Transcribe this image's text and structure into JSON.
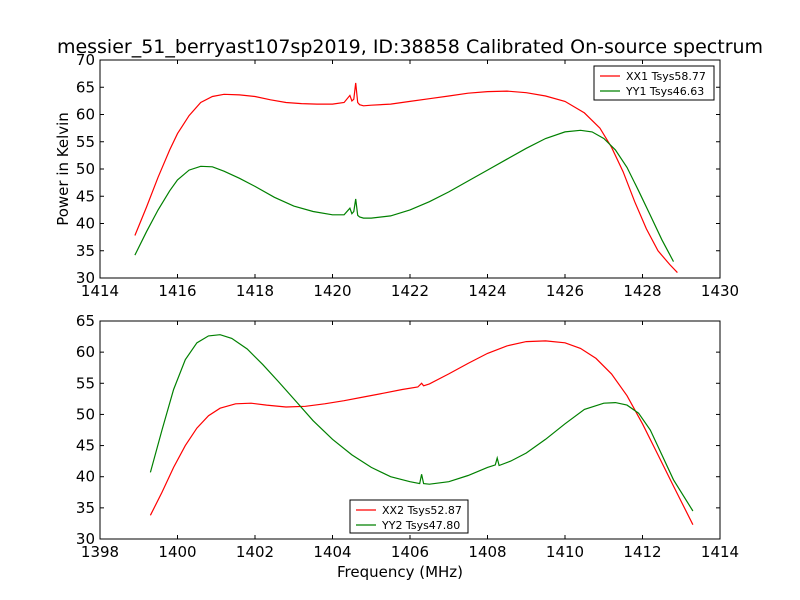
{
  "title": "messier_51_berryast107sp2019, ID:38858 Calibrated On-source spectrum",
  "colors": {
    "xx": "#ff0000",
    "yy": "#008000"
  },
  "chart_data": [
    {
      "type": "line",
      "ylabel": "Power in Kelvin",
      "xlabel": "",
      "xlim": [
        1414,
        1430
      ],
      "ylim": [
        30,
        70
      ],
      "xticks": [
        1414,
        1416,
        1418,
        1420,
        1422,
        1424,
        1426,
        1428,
        1430
      ],
      "yticks": [
        30,
        35,
        40,
        45,
        50,
        55,
        60,
        65,
        70
      ],
      "legend_position": "top-right",
      "series": [
        {
          "name": "XX1 Tsys58.77",
          "color": "#ff0000",
          "x": [
            1414.9,
            1415.2,
            1415.5,
            1415.8,
            1416.0,
            1416.3,
            1416.6,
            1416.9,
            1417.2,
            1417.6,
            1418.0,
            1418.4,
            1418.8,
            1419.2,
            1419.6,
            1420.0,
            1420.3,
            1420.45,
            1420.5,
            1420.55,
            1420.6,
            1420.65,
            1420.7,
            1420.8,
            1421.0,
            1421.5,
            1422.0,
            1422.5,
            1423.0,
            1423.5,
            1424.0,
            1424.5,
            1425.0,
            1425.5,
            1426.0,
            1426.5,
            1426.9,
            1427.2,
            1427.5,
            1427.8,
            1428.1,
            1428.4,
            1428.7,
            1428.9
          ],
          "y": [
            37.8,
            43.0,
            48.5,
            53.5,
            56.5,
            59.8,
            62.2,
            63.3,
            63.7,
            63.6,
            63.3,
            62.7,
            62.2,
            62.0,
            61.9,
            61.9,
            62.2,
            63.5,
            62.5,
            62.8,
            65.8,
            62.2,
            61.8,
            61.6,
            61.7,
            61.9,
            62.4,
            62.9,
            63.4,
            63.9,
            64.2,
            64.3,
            64.0,
            63.4,
            62.4,
            60.3,
            57.5,
            54.0,
            49.5,
            44.0,
            39.0,
            35.0,
            32.5,
            31.0
          ]
        },
        {
          "name": "YY1 Tsys46.63",
          "color": "#008000",
          "x": [
            1414.9,
            1415.2,
            1415.5,
            1415.8,
            1416.0,
            1416.3,
            1416.6,
            1416.9,
            1417.2,
            1417.6,
            1418.0,
            1418.5,
            1419.0,
            1419.5,
            1420.0,
            1420.3,
            1420.45,
            1420.5,
            1420.55,
            1420.6,
            1420.65,
            1420.7,
            1420.8,
            1421.0,
            1421.5,
            1422.0,
            1422.5,
            1423.0,
            1423.5,
            1424.0,
            1424.5,
            1425.0,
            1425.5,
            1426.0,
            1426.4,
            1426.7,
            1427.0,
            1427.3,
            1427.6,
            1427.9,
            1428.2,
            1428.5,
            1428.8
          ],
          "y": [
            34.2,
            38.5,
            42.5,
            46.0,
            48.0,
            49.8,
            50.5,
            50.4,
            49.6,
            48.3,
            46.8,
            44.8,
            43.2,
            42.2,
            41.6,
            41.6,
            42.8,
            41.8,
            42.2,
            44.5,
            41.5,
            41.2,
            41.0,
            41.0,
            41.4,
            42.5,
            44.0,
            45.8,
            47.8,
            49.8,
            51.8,
            53.8,
            55.6,
            56.8,
            57.1,
            56.8,
            55.6,
            53.5,
            50.3,
            46.0,
            41.5,
            37.0,
            33.0
          ]
        }
      ]
    },
    {
      "type": "line",
      "ylabel": "",
      "xlabel": "Frequency (MHz)",
      "xlim": [
        1398,
        1414
      ],
      "ylim": [
        30,
        65
      ],
      "xticks": [
        1398,
        1400,
        1402,
        1404,
        1406,
        1408,
        1410,
        1412,
        1414
      ],
      "yticks": [
        30,
        35,
        40,
        45,
        50,
        55,
        60,
        65
      ],
      "legend_position": "bottom-center",
      "series": [
        {
          "name": "XX2 Tsys52.87",
          "color": "#ff0000",
          "x": [
            1399.3,
            1399.6,
            1399.9,
            1400.2,
            1400.5,
            1400.8,
            1401.1,
            1401.5,
            1401.9,
            1402.3,
            1402.8,
            1403.3,
            1403.8,
            1404.3,
            1404.8,
            1405.3,
            1405.8,
            1406.2,
            1406.3,
            1406.35,
            1406.5,
            1407.0,
            1407.5,
            1408.0,
            1408.5,
            1409.0,
            1409.5,
            1410.0,
            1410.4,
            1410.8,
            1411.2,
            1411.6,
            1412.0,
            1412.4,
            1412.8,
            1413.3
          ],
          "y": [
            33.8,
            37.5,
            41.5,
            45.0,
            47.8,
            49.8,
            51.0,
            51.7,
            51.8,
            51.5,
            51.2,
            51.3,
            51.7,
            52.2,
            52.8,
            53.4,
            54.0,
            54.4,
            55.0,
            54.6,
            54.9,
            56.5,
            58.2,
            59.8,
            61.0,
            61.7,
            61.8,
            61.5,
            60.6,
            59.0,
            56.5,
            53.0,
            48.5,
            43.5,
            38.5,
            32.3
          ]
        },
        {
          "name": "YY2 Tsys47.80",
          "color": "#008000",
          "x": [
            1399.3,
            1399.6,
            1399.9,
            1400.2,
            1400.5,
            1400.8,
            1401.1,
            1401.4,
            1401.8,
            1402.2,
            1402.6,
            1403.0,
            1403.5,
            1404.0,
            1404.5,
            1405.0,
            1405.5,
            1406.0,
            1406.25,
            1406.3,
            1406.35,
            1406.5,
            1407.0,
            1407.5,
            1408.0,
            1408.2,
            1408.25,
            1408.3,
            1408.6,
            1409.0,
            1409.5,
            1410.0,
            1410.5,
            1411.0,
            1411.3,
            1411.6,
            1411.9,
            1412.2,
            1412.5,
            1412.8,
            1413.3
          ],
          "y": [
            40.7,
            47.5,
            54.0,
            58.8,
            61.5,
            62.6,
            62.8,
            62.2,
            60.5,
            58.0,
            55.3,
            52.5,
            49.0,
            46.0,
            43.5,
            41.5,
            40.0,
            39.2,
            38.9,
            40.4,
            38.9,
            38.8,
            39.2,
            40.2,
            41.5,
            41.9,
            43.0,
            41.8,
            42.5,
            43.8,
            46.0,
            48.5,
            50.8,
            51.8,
            51.9,
            51.5,
            50.2,
            47.5,
            43.5,
            39.5,
            34.5
          ]
        }
      ]
    }
  ]
}
